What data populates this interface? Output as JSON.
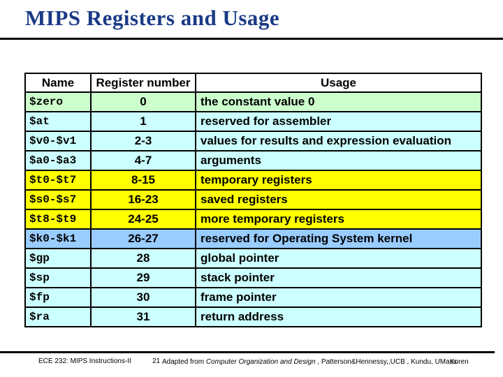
{
  "slide": {
    "title": "MIPS Registers and Usage",
    "title_color": "#1a3a85"
  },
  "table": {
    "headers": {
      "name": "Name",
      "register_number": "Register number",
      "usage": "Usage"
    },
    "row_colors": {
      "constant": "#ccffcc",
      "general": "#ccffff",
      "temporary": "#ffff00",
      "kernel": "#99ccff"
    },
    "rows": [
      {
        "name": "$zero",
        "number": "0",
        "usage": "the constant value 0",
        "color": "#ccffcc"
      },
      {
        "name": "$at",
        "number": "1",
        "usage": "reserved for assembler",
        "color": "#ccffff"
      },
      {
        "name": "$v0-$v1",
        "number": "2-3",
        "usage": "values for results and expression evaluation",
        "color": "#ccffff"
      },
      {
        "name": "$a0-$a3",
        "number": "4-7",
        "usage": "arguments",
        "color": "#ccffff"
      },
      {
        "name": "$t0-$t7",
        "number": "8-15",
        "usage": "temporary registers",
        "color": "#ffff00"
      },
      {
        "name": "$s0-$s7",
        "number": "16-23",
        "usage": "saved registers",
        "color": "#ffff00"
      },
      {
        "name": "$t8-$t9",
        "number": "24-25",
        "usage": "more temporary registers",
        "color": "#ffff00"
      },
      {
        "name": "$k0-$k1",
        "number": "26-27",
        "usage": "reserved for Operating System kernel",
        "color": "#99ccff"
      },
      {
        "name": "$gp",
        "number": "28",
        "usage": "global pointer",
        "color": "#ccffff"
      },
      {
        "name": "$sp",
        "number": "29",
        "usage": "stack pointer",
        "color": "#ccffff"
      },
      {
        "name": "$fp",
        "number": "30",
        "usage": "frame pointer",
        "color": "#ccffff"
      },
      {
        "name": "$ra",
        "number": "31",
        "usage": "return address",
        "color": "#ccffff"
      }
    ]
  },
  "footer": {
    "course": "ECE 232: MIPS Instructions-II",
    "page_number": "21",
    "credit_prefix": "Adapted from ",
    "credit_book": "Computer Organization and Design",
    "credit_suffix": " , Patterson&Hennessy,,UCB , Kundu, UMass",
    "author": "Koren"
  }
}
